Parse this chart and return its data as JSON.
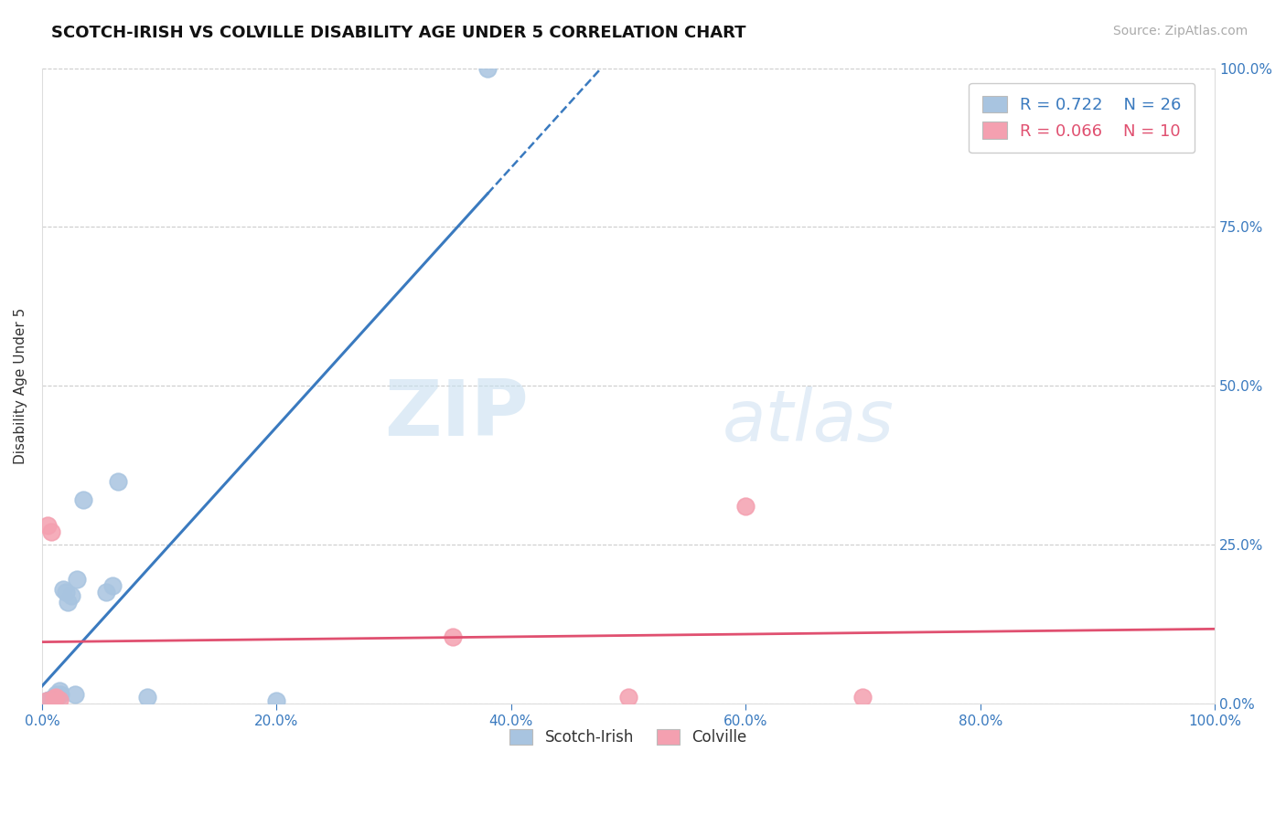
{
  "title": "SCOTCH-IRISH VS COLVILLE DISABILITY AGE UNDER 5 CORRELATION CHART",
  "source": "Source: ZipAtlas.com",
  "ylabel": "Disability Age Under 5",
  "xlim": [
    0,
    1.0
  ],
  "ylim": [
    0,
    1.0
  ],
  "xtick_positions": [
    0,
    0.2,
    0.4,
    0.6,
    0.8,
    1.0
  ],
  "xtick_labels": [
    "0.0%",
    "20.0%",
    "40.0%",
    "60.0%",
    "80.0%",
    "100.0%"
  ],
  "ytick_positions": [
    0,
    0.25,
    0.5,
    0.75,
    1.0
  ],
  "right_ytick_labels": [
    "0.0%",
    "25.0%",
    "50.0%",
    "75.0%",
    "100.0%"
  ],
  "grid_color": "#cccccc",
  "background_color": "#ffffff",
  "scotch_irish_color": "#a8c4e0",
  "colville_color": "#f4a0b0",
  "scotch_irish_line_color": "#3a7abf",
  "colville_line_color": "#e05070",
  "scotch_irish_R": 0.722,
  "scotch_irish_N": 26,
  "colville_R": 0.066,
  "colville_N": 10,
  "legend_color_si": "#3a7abf",
  "legend_color_col": "#e05070",
  "watermark_zip": "ZIP",
  "watermark_atlas": "atlas",
  "scotch_irish_x": [
    0.003,
    0.004,
    0.005,
    0.006,
    0.007,
    0.008,
    0.009,
    0.01,
    0.011,
    0.012,
    0.013,
    0.015,
    0.016,
    0.018,
    0.02,
    0.022,
    0.025,
    0.028,
    0.03,
    0.035,
    0.055,
    0.06,
    0.065,
    0.09,
    0.2,
    0.38
  ],
  "scotch_irish_y": [
    0.003,
    0.005,
    0.004,
    0.006,
    0.005,
    0.007,
    0.006,
    0.008,
    0.01,
    0.015,
    0.012,
    0.02,
    0.015,
    0.18,
    0.175,
    0.16,
    0.17,
    0.015,
    0.195,
    0.32,
    0.175,
    0.185,
    0.35,
    0.01,
    0.005,
    1.0
  ],
  "colville_x": [
    0.004,
    0.005,
    0.008,
    0.01,
    0.012,
    0.015,
    0.35,
    0.5,
    0.6,
    0.7
  ],
  "colville_y": [
    0.005,
    0.28,
    0.27,
    0.008,
    0.01,
    0.006,
    0.105,
    0.01,
    0.31,
    0.01
  ]
}
